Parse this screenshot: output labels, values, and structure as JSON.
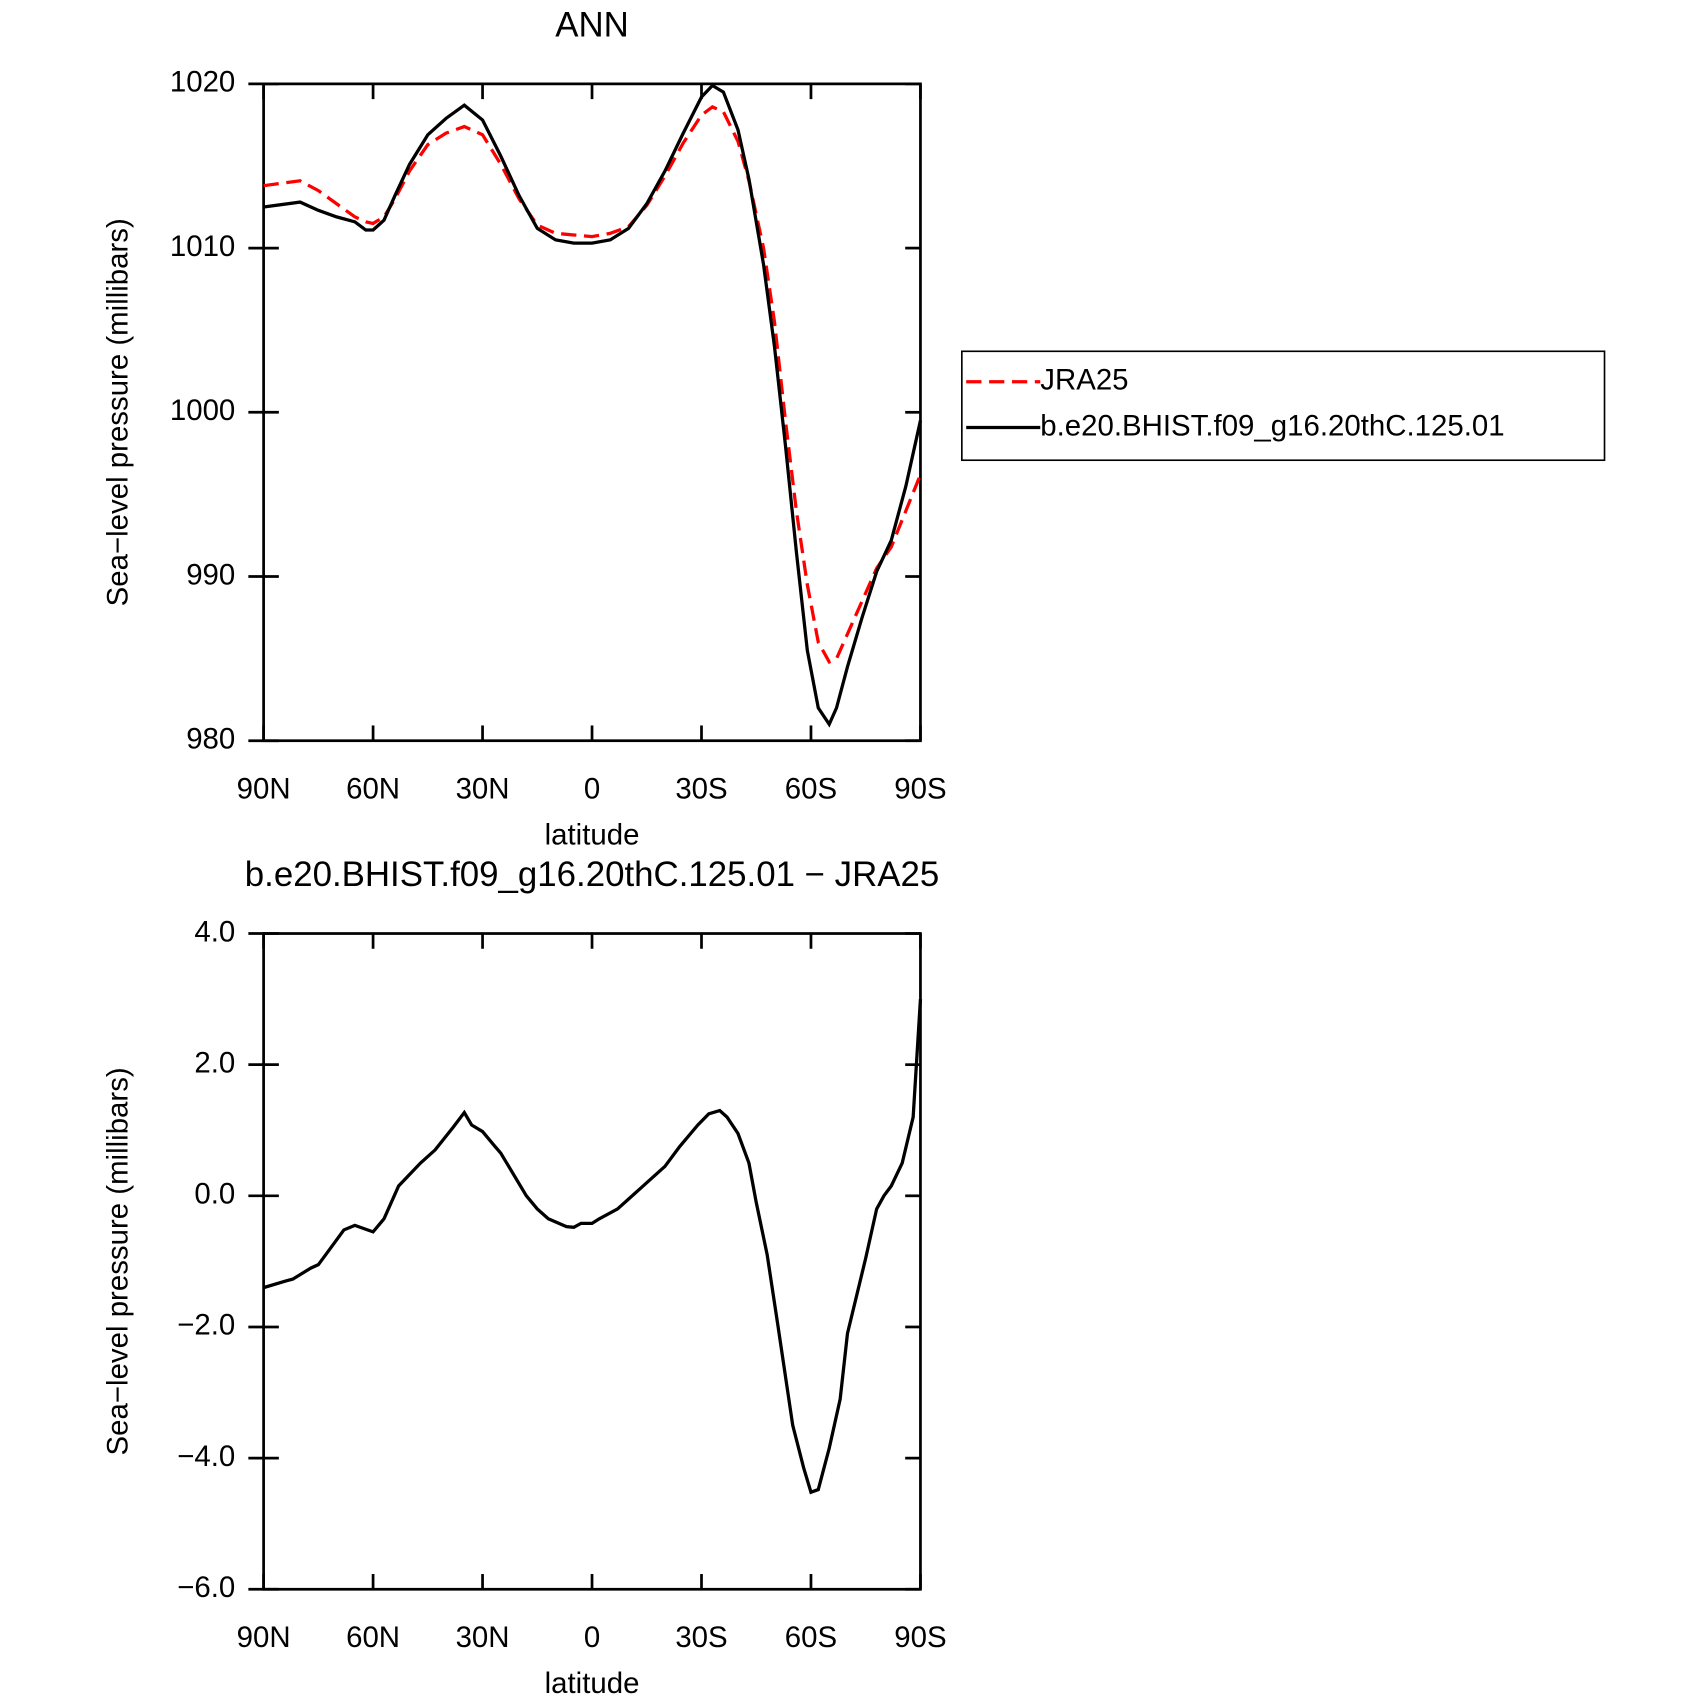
{
  "chart_data": [
    {
      "type": "line",
      "title": "ANN",
      "xlabel": "latitude",
      "ylabel": "Sea−level pressure (millibars)",
      "x": [
        90,
        80,
        75,
        70,
        65,
        62,
        60,
        57,
        54,
        50,
        45,
        40,
        35,
        30,
        25,
        20,
        15,
        10,
        5,
        0,
        -5,
        -10,
        -15,
        -20,
        -25,
        -30,
        -33,
        -36,
        -40,
        -43,
        -47,
        -50,
        -53,
        -56,
        -59,
        -62,
        -65,
        -67,
        -70,
        -74,
        -78,
        -82,
        -86,
        -90
      ],
      "series": [
        {
          "name": "JRA25",
          "color": "#ff0000",
          "style": "dashed",
          "values": [
            1013.8,
            1014.1,
            1013.5,
            1012.7,
            1011.9,
            1011.6,
            1011.5,
            1011.9,
            1013.0,
            1014.7,
            1016.3,
            1017.0,
            1017.4,
            1016.9,
            1015.1,
            1013.0,
            1011.4,
            1010.9,
            1010.8,
            1010.7,
            1010.9,
            1011.3,
            1012.6,
            1014.4,
            1016.4,
            1018.1,
            1018.6,
            1018.3,
            1016.5,
            1014.1,
            1010,
            1005.5,
            999.5,
            994,
            989.5,
            986,
            984.8,
            985,
            986.5,
            988.5,
            990.5,
            991.8,
            994,
            996.2
          ]
        },
        {
          "name": "b.e20.BHIST.f09_g16.20thC.125.01",
          "color": "#000000",
          "style": "solid",
          "values": [
            1012.5,
            1012.8,
            1012.3,
            1011.9,
            1011.6,
            1011.1,
            1011.1,
            1011.7,
            1013.2,
            1015.1,
            1016.9,
            1017.9,
            1018.7,
            1017.8,
            1015.6,
            1013.2,
            1011.2,
            1010.5,
            1010.3,
            1010.3,
            1010.5,
            1011.2,
            1012.7,
            1014.7,
            1017.0,
            1019.2,
            1019.9,
            1019.5,
            1017.2,
            1014.2,
            1009,
            1004,
            998,
            991.5,
            985.5,
            982,
            981,
            982,
            984.5,
            987.5,
            990.3,
            992.2,
            995.5,
            999.5
          ]
        }
      ],
      "xlim": [
        90,
        -90
      ],
      "xticks": [
        {
          "value": 90,
          "label": "90N"
        },
        {
          "value": 60,
          "label": "60N"
        },
        {
          "value": 30,
          "label": "30N"
        },
        0,
        {
          "value": -30,
          "label": "30S"
        },
        {
          "value": -60,
          "label": "60S"
        },
        {
          "value": -90,
          "label": "90S"
        }
      ],
      "ylim": [
        980,
        1020
      ],
      "yticks": [
        980,
        990,
        1000,
        1010,
        1020
      ],
      "legend": "right"
    },
    {
      "type": "line",
      "title": "b.e20.BHIST.f09_g16.20thC.125.01 − JRA25",
      "xlabel": "latitude",
      "ylabel": "Sea−level pressure (millibars)",
      "x": [
        90,
        84,
        82,
        77,
        75,
        73,
        68,
        65,
        60,
        57,
        53,
        47,
        43,
        38,
        35,
        33,
        30,
        27,
        25,
        18,
        15,
        12,
        7,
        5,
        3,
        0,
        -2,
        -7,
        -15,
        -20,
        -24,
        -29,
        -32,
        -35,
        -37,
        -40,
        -43,
        -45,
        -48,
        -51,
        -55,
        -58,
        -60,
        -62,
        -65,
        -68,
        -70,
        -75,
        -78,
        -80,
        -82,
        -85,
        -88,
        -90
      ],
      "series": [
        {
          "color": "#000000",
          "style": "solid",
          "values": [
            -1.4,
            -1.3,
            -1.27,
            -1.1,
            -1.05,
            -0.9,
            -0.52,
            -0.45,
            -0.55,
            -0.35,
            0.15,
            0.5,
            0.7,
            1.05,
            1.27,
            1.08,
            0.98,
            0.78,
            0.65,
            0.0,
            -0.2,
            -0.35,
            -0.47,
            -0.48,
            -0.42,
            -0.42,
            -0.35,
            -0.2,
            0.2,
            0.45,
            0.75,
            1.08,
            1.25,
            1.3,
            1.2,
            0.95,
            0.5,
            -0.1,
            -0.9,
            -2.0,
            -3.5,
            -4.15,
            -4.52,
            -4.48,
            -3.85,
            -3.1,
            -2.1,
            -0.95,
            -0.2,
            0.0,
            0.15,
            0.5,
            1.2,
            3.0
          ]
        }
      ],
      "xlim": [
        90,
        -90
      ],
      "xticks": [
        {
          "value": 90,
          "label": "90N"
        },
        {
          "value": 60,
          "label": "60N"
        },
        {
          "value": 30,
          "label": "30N"
        },
        0,
        {
          "value": -30,
          "label": "30S"
        },
        {
          "value": -60,
          "label": "60S"
        },
        {
          "value": -90,
          "label": "90S"
        }
      ],
      "ylim": [
        -6,
        4
      ],
      "yticks": [
        {
          "value": -6,
          "label": "−6.0"
        },
        {
          "value": -4,
          "label": "−4.0"
        },
        {
          "value": -2,
          "label": "−2.0"
        },
        {
          "value": 0,
          "label": "0.0"
        },
        {
          "value": 2,
          "label": "2.0"
        },
        {
          "value": 4,
          "label": "4.0"
        }
      ]
    }
  ]
}
